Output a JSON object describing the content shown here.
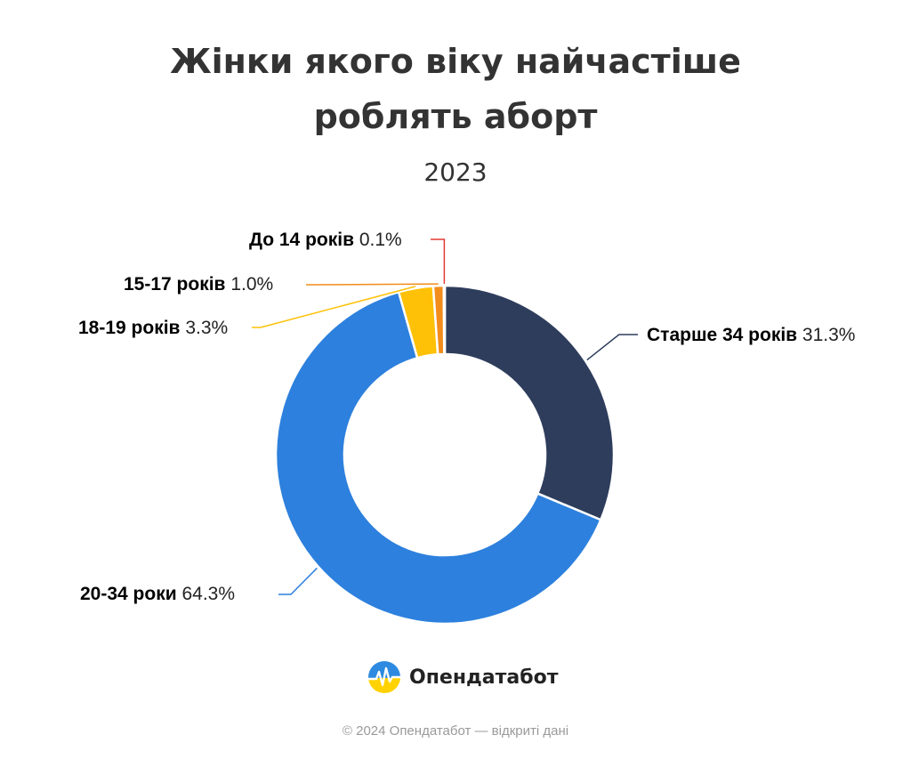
{
  "title_line1": "Жінки якого віку найчастіше",
  "title_line2": "роблять аборт",
  "subtitle": "2023",
  "brand": {
    "name": "Опендатабот",
    "logo_colors": [
      "#2d8ae0",
      "#ffd200"
    ]
  },
  "footer": "© 2024 Опендатабот — відкриті дані",
  "chart_data": {
    "type": "pie",
    "donut": true,
    "legend": "none",
    "slices": [
      {
        "label": "Старше 34 років",
        "value": 31.3,
        "display": "31.3%",
        "color": "#2e3d5c"
      },
      {
        "label": "20-34 роки",
        "value": 64.3,
        "display": "64.3%",
        "color": "#2d80dd"
      },
      {
        "label": "18-19 років",
        "value": 3.3,
        "display": "3.3%",
        "color": "#ffc107"
      },
      {
        "label": "15-17 років",
        "value": 1.0,
        "display": "1.0%",
        "color": "#f28c1b"
      },
      {
        "label": "До 14 років",
        "value": 0.1,
        "display": "0.1%",
        "color": "#e53935"
      }
    ]
  }
}
